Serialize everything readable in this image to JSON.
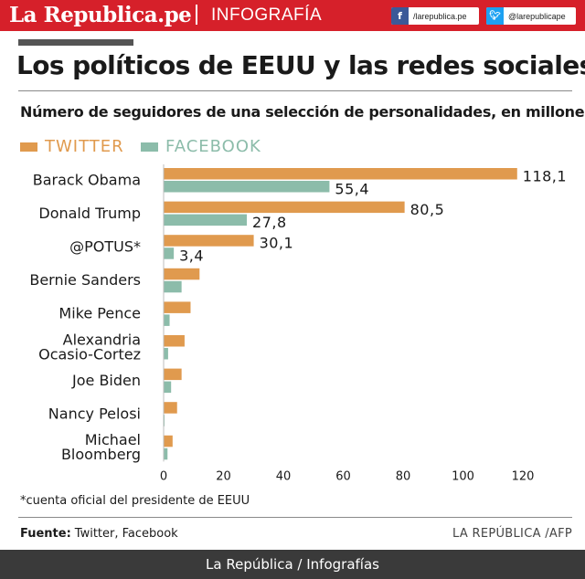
{
  "header": {
    "brand": "La Republica.pe",
    "section": "INFOGRAFÍA",
    "facebook": {
      "icon": "facebook-icon",
      "handle": "/larepublica.pe"
    },
    "twitter": {
      "icon": "twitter-icon",
      "handle": "@larepublicape"
    },
    "accent_color": "#d6202a"
  },
  "title": "Los políticos de EEUU y las redes sociales",
  "subtitle": "Número de seguidores de una selección de personalidades, en millones",
  "chart_data": {
    "type": "bar",
    "orientation": "horizontal",
    "categories": [
      [
        "Barack Obama"
      ],
      [
        "Donald Trump"
      ],
      [
        "@POTUS*"
      ],
      [
        "Bernie Sanders"
      ],
      [
        "Mike Pence"
      ],
      [
        "Alexandria",
        "Ocasio-Cortez"
      ],
      [
        "Joe Biden"
      ],
      [
        "Nancy Pelosi"
      ],
      [
        "Michael",
        "Bloomberg"
      ]
    ],
    "series": [
      {
        "name": "TWITTER",
        "color": "#e09a4e",
        "values": [
          118.1,
          80.5,
          30.1,
          12,
          9,
          7,
          6,
          4.5,
          3
        ],
        "labels": [
          "118,1",
          "80,5",
          "30,1",
          "",
          "",
          "",
          "",
          "",
          ""
        ]
      },
      {
        "name": "FACEBOOK",
        "color": "#8cbcaa",
        "values": [
          55.4,
          27.8,
          3.4,
          6,
          2,
          1.5,
          2.5,
          0.3,
          1.3
        ],
        "labels": [
          "55,4",
          "27,8",
          "3,4",
          "",
          "",
          "",
          "",
          "",
          ""
        ]
      }
    ],
    "xlim": [
      0,
      120
    ],
    "xticks": [
      0,
      20,
      40,
      60,
      80,
      100,
      120
    ],
    "legend": "top-left",
    "grid": false
  },
  "footnote": "*cuenta oficial del presidente de EEUU",
  "source": {
    "label": "Fuente:",
    "text": "Twitter, Facebook"
  },
  "credit": "LA REPÚBLICA /AFP",
  "footer": "La República / Infografías"
}
